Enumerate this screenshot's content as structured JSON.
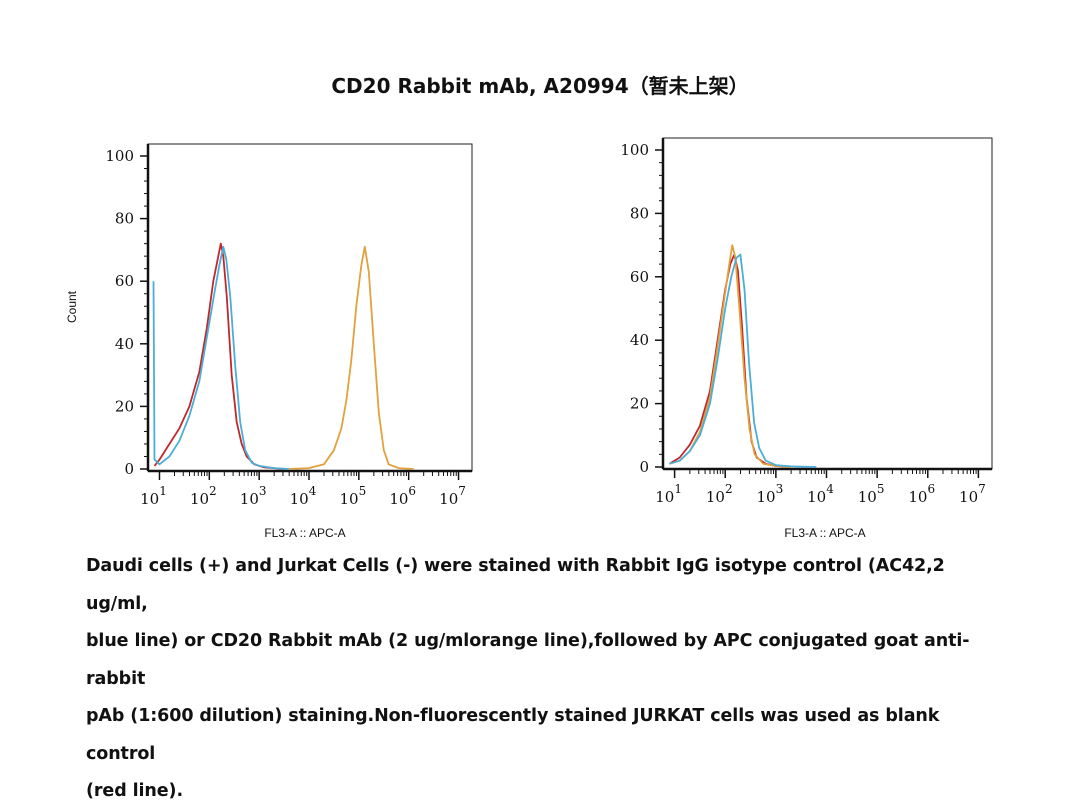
{
  "title": "CD20 Rabbit mAb, A20994（暂未上架）",
  "caption": [
    "Daudi cells (+) and Jurkat Cells (-) were stained with Rabbit IgG isotype control (AC42,2 ug/ml,",
    "blue line) or CD20 Rabbit mAb (2 ug/mlorange line),followed by APC conjugated goat anti-rabbit",
    "pAb (1:600 dilution) staining.Non-fluorescently stained JURKAT cells was used as blank control",
    "(red line)."
  ],
  "colors": {
    "red": "#c0282d",
    "blue": "#4aaed8",
    "orange": "#e3a03c"
  },
  "chart_data": [
    {
      "type": "line",
      "xlabel": "FL3-A :: APC-A",
      "ylabel": "Count",
      "xscale": "log",
      "ylim": [
        0,
        100
      ],
      "yticks": [
        "0",
        "20",
        "40",
        "60",
        "80",
        "100"
      ],
      "xticks": [
        {
          "base": "10",
          "exp": "1"
        },
        {
          "base": "10",
          "exp": "2"
        },
        {
          "base": "10",
          "exp": "3"
        },
        {
          "base": "10",
          "exp": "4"
        },
        {
          "base": "10",
          "exp": "5"
        },
        {
          "base": "10",
          "exp": "6"
        },
        {
          "base": "10",
          "exp": "7"
        }
      ],
      "series": [
        {
          "color": "red",
          "points": [
            [
              0.9,
              1
            ],
            [
              1.0,
              3
            ],
            [
              1.2,
              8
            ],
            [
              1.4,
              13
            ],
            [
              1.6,
              20
            ],
            [
              1.8,
              31
            ],
            [
              1.95,
              45
            ],
            [
              2.08,
              60
            ],
            [
              2.18,
              68
            ],
            [
              2.23,
              72
            ],
            [
              2.28,
              68
            ],
            [
              2.35,
              55
            ],
            [
              2.45,
              30
            ],
            [
              2.55,
              15
            ],
            [
              2.65,
              8
            ],
            [
              2.75,
              4
            ],
            [
              2.9,
              1.5
            ],
            [
              3.1,
              0.5
            ],
            [
              3.5,
              0
            ]
          ]
        },
        {
          "color": "blue",
          "points": [
            [
              0.88,
              60
            ],
            [
              0.9,
              3
            ],
            [
              1.0,
              1.5
            ],
            [
              1.2,
              4
            ],
            [
              1.4,
              9
            ],
            [
              1.6,
              17
            ],
            [
              1.8,
              28
            ],
            [
              1.95,
              42
            ],
            [
              2.1,
              56
            ],
            [
              2.2,
              65
            ],
            [
              2.28,
              71
            ],
            [
              2.34,
              67
            ],
            [
              2.42,
              55
            ],
            [
              2.52,
              33
            ],
            [
              2.62,
              15
            ],
            [
              2.72,
              6
            ],
            [
              2.85,
              2
            ],
            [
              3.0,
              1
            ],
            [
              3.3,
              0.3
            ],
            [
              3.6,
              0
            ]
          ]
        },
        {
          "color": "orange",
          "points": [
            [
              3.6,
              0
            ],
            [
              4.0,
              0.3
            ],
            [
              4.3,
              1.5
            ],
            [
              4.5,
              6
            ],
            [
              4.65,
              13
            ],
            [
              4.75,
              22
            ],
            [
              4.85,
              35
            ],
            [
              4.95,
              52
            ],
            [
              5.05,
              65
            ],
            [
              5.12,
              71
            ],
            [
              5.2,
              63
            ],
            [
              5.3,
              40
            ],
            [
              5.4,
              18
            ],
            [
              5.5,
              6
            ],
            [
              5.6,
              1.5
            ],
            [
              5.8,
              0.3
            ],
            [
              6.1,
              0
            ]
          ]
        }
      ]
    },
    {
      "type": "line",
      "xlabel": "FL3-A :: APC-A",
      "xscale": "log",
      "ylim": [
        0,
        100
      ],
      "yticks": [
        "0",
        "20",
        "40",
        "60",
        "80",
        "100"
      ],
      "xticks": [
        {
          "base": "10",
          "exp": "1"
        },
        {
          "base": "10",
          "exp": "2"
        },
        {
          "base": "10",
          "exp": "3"
        },
        {
          "base": "10",
          "exp": "4"
        },
        {
          "base": "10",
          "exp": "5"
        },
        {
          "base": "10",
          "exp": "6"
        },
        {
          "base": "10",
          "exp": "7"
        }
      ],
      "series": [
        {
          "color": "red",
          "points": [
            [
              0.9,
              1
            ],
            [
              1.1,
              3
            ],
            [
              1.3,
              7
            ],
            [
              1.5,
              13
            ],
            [
              1.7,
              24
            ],
            [
              1.85,
              40
            ],
            [
              2.0,
              56
            ],
            [
              2.1,
              64
            ],
            [
              2.18,
              67
            ],
            [
              2.25,
              62
            ],
            [
              2.33,
              45
            ],
            [
              2.42,
              22
            ],
            [
              2.52,
              8
            ],
            [
              2.62,
              3
            ],
            [
              2.8,
              1
            ],
            [
              3.0,
              0.3
            ],
            [
              3.3,
              0
            ]
          ]
        },
        {
          "color": "orange",
          "points": [
            [
              0.9,
              1
            ],
            [
              1.1,
              2
            ],
            [
              1.3,
              5
            ],
            [
              1.5,
              11
            ],
            [
              1.7,
              22
            ],
            [
              1.85,
              38
            ],
            [
              2.0,
              55
            ],
            [
              2.08,
              64
            ],
            [
              2.14,
              70
            ],
            [
              2.2,
              66
            ],
            [
              2.28,
              50
            ],
            [
              2.38,
              28
            ],
            [
              2.48,
              12
            ],
            [
              2.58,
              4
            ],
            [
              2.75,
              1
            ],
            [
              3.0,
              0.3
            ],
            [
              3.3,
              0
            ]
          ]
        },
        {
          "color": "blue",
          "points": [
            [
              0.9,
              1
            ],
            [
              1.1,
              2
            ],
            [
              1.3,
              5
            ],
            [
              1.5,
              10
            ],
            [
              1.7,
              20
            ],
            [
              1.85,
              34
            ],
            [
              2.0,
              50
            ],
            [
              2.12,
              60
            ],
            [
              2.22,
              66
            ],
            [
              2.3,
              67
            ],
            [
              2.38,
              56
            ],
            [
              2.47,
              33
            ],
            [
              2.57,
              14
            ],
            [
              2.67,
              6
            ],
            [
              2.8,
              2
            ],
            [
              3.0,
              0.6
            ],
            [
              3.3,
              0.2
            ],
            [
              3.8,
              0
            ]
          ]
        }
      ]
    }
  ]
}
